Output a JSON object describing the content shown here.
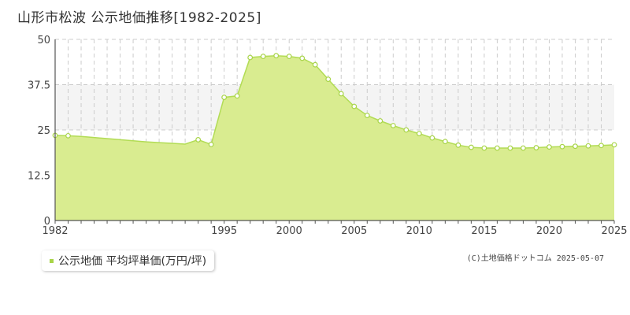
{
  "title": "山形市松波 公示地価推移[1982-2025]",
  "legend": {
    "label": "公示地価 平均坪単価(万円/坪)"
  },
  "credit": "(C)土地価格ドットコム 2025-05-07",
  "colors": {
    "fill": "#d9ec90",
    "line": "#b2dc55",
    "marker_fill": "#ffffff",
    "marker_stroke": "#a8d448",
    "band": "#f4f4f4",
    "grid": "#cccccc",
    "axis": "#555555"
  },
  "chart_data": {
    "type": "area",
    "title": "山形市松波 公示地価推移[1982-2025]",
    "xlabel": "",
    "ylabel": "",
    "xlim": [
      1982,
      2025
    ],
    "ylim": [
      0,
      50
    ],
    "yticks": [
      "0",
      "12.5",
      "25",
      "37.5",
      "50"
    ],
    "xticks": [
      "1982",
      "1995",
      "2000",
      "2005",
      "2010",
      "2015",
      "2020",
      "2025"
    ],
    "grid": true,
    "series": [
      {
        "name": "公示地価 平均坪単価(万円/坪)",
        "x": [
          1982,
          1983,
          1984,
          1985,
          1986,
          1987,
          1988,
          1989,
          1990,
          1991,
          1992,
          1993,
          1994,
          1995,
          1996,
          1997,
          1998,
          1999,
          2000,
          2001,
          2002,
          2003,
          2004,
          2005,
          2006,
          2007,
          2008,
          2009,
          2010,
          2011,
          2012,
          2013,
          2014,
          2015,
          2016,
          2017,
          2018,
          2019,
          2020,
          2021,
          2022,
          2023,
          2024,
          2025
        ],
        "values": [
          23.5,
          23.4,
          23.2,
          22.9,
          22.6,
          22.3,
          22.0,
          21.7,
          21.5,
          21.3,
          21.1,
          22.3,
          21.0,
          34.0,
          34.4,
          45.0,
          45.3,
          45.5,
          45.3,
          44.8,
          43.0,
          39.0,
          35.0,
          31.5,
          29.0,
          27.5,
          26.2,
          25.0,
          24.0,
          22.8,
          21.8,
          20.8,
          20.2,
          20.0,
          20.0,
          20.0,
          20.0,
          20.1,
          20.3,
          20.4,
          20.5,
          20.6,
          20.7,
          20.9
        ]
      }
    ],
    "markers_shown_at": [
      1982,
      1983,
      1993,
      1994,
      1995,
      1996,
      1997,
      1998,
      1999,
      2000,
      2001,
      2002,
      2003,
      2004,
      2005,
      2006,
      2007,
      2008,
      2009,
      2010,
      2011,
      2012,
      2013,
      2014,
      2015,
      2016,
      2017,
      2018,
      2019,
      2020,
      2021,
      2022,
      2023,
      2024,
      2025
    ]
  }
}
